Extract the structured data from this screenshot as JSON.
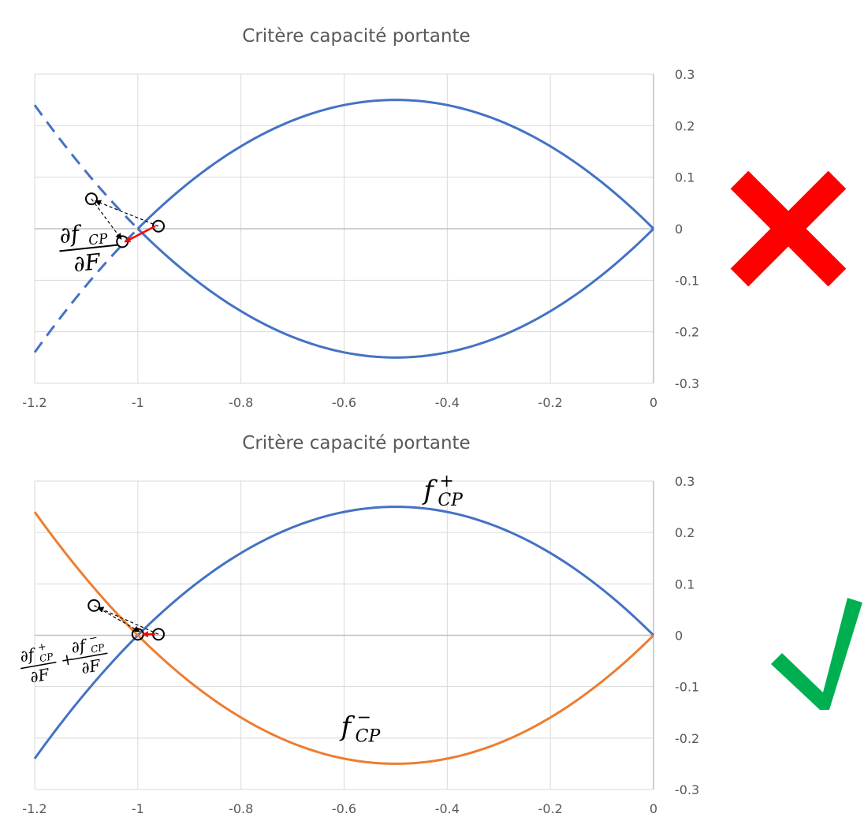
{
  "colors": {
    "blue": "#4472C4",
    "orange": "#ED7D31",
    "grid": "#D9D9D9",
    "axis": "#BFBFBF",
    "tick_text": "#595959",
    "gradient_arrow": "#FF0000",
    "wrong_mark": "#FF0000",
    "right_mark": "#00B050"
  },
  "icons": {
    "wrong": "cross-mark-icon",
    "right": "check-mark-icon"
  },
  "chart_data": [
    {
      "type": "line",
      "title": "Critère  capacité portante",
      "xlim": [
        -1.2,
        0
      ],
      "ylim": [
        -0.3,
        0.3
      ],
      "x_ticks": [
        "-1.2",
        "-1",
        "-0.8",
        "-0.6",
        "-0.4",
        "-0.2",
        "0"
      ],
      "y_ticks": [
        "0.3",
        "0.2",
        "0.1",
        "0",
        "-0.1",
        "-0.2",
        "-0.3"
      ],
      "x_tick_values": [
        -1.2,
        -1,
        -0.8,
        -0.6,
        -0.4,
        -0.2,
        0
      ],
      "y_tick_values": [
        0.3,
        0.2,
        0.1,
        0,
        -0.1,
        -0.2,
        -0.3
      ],
      "grid": true,
      "y_axis_position": "right",
      "series": [
        {
          "color": "#4472C4",
          "style": "solid",
          "domain": [
            -1,
            0
          ],
          "x": [
            -1,
            -0.9,
            -0.8,
            -0.7,
            -0.6,
            -0.5,
            -0.4,
            -0.3,
            -0.2,
            -0.1,
            0
          ],
          "y": [
            0,
            0.09,
            0.16,
            0.21,
            0.24,
            0.25,
            0.24,
            0.21,
            0.16,
            0.09,
            0
          ]
        },
        {
          "color": "#4472C4",
          "style": "solid",
          "domain": [
            -1,
            0
          ],
          "x": [
            -1,
            -0.9,
            -0.8,
            -0.7,
            -0.6,
            -0.5,
            -0.4,
            -0.3,
            -0.2,
            -0.1,
            0
          ],
          "y": [
            0,
            -0.09,
            -0.16,
            -0.21,
            -0.24,
            -0.25,
            -0.24,
            -0.21,
            -0.16,
            -0.09,
            0
          ]
        },
        {
          "color": "#4472C4",
          "style": "dashed",
          "domain": [
            -1.2,
            -1
          ],
          "x": [
            -1.2,
            -1.1,
            -1
          ],
          "y": [
            0.24,
            0.11,
            0
          ]
        },
        {
          "color": "#4472C4",
          "style": "dashed",
          "domain": [
            -1.2,
            -1
          ],
          "x": [
            -1.2,
            -1.1,
            -1
          ],
          "y": [
            -0.24,
            -0.11,
            0
          ]
        }
      ],
      "annotation": {
        "label": "∂f<sub>CP</sub> / ∂F",
        "numerator": "∂f",
        "numerator_sub": "CP",
        "denominator": "∂F",
        "arrow_start": [
          -0.96,
          0.005
        ],
        "arrow_end": [
          -1.03,
          -0.025
        ],
        "projection_from": [
          -1.09,
          0.058
        ],
        "circles": [
          [
            -1.09,
            0.058
          ],
          [
            -0.96,
            0.005
          ],
          [
            -1.03,
            -0.025
          ]
        ]
      },
      "verdict_icon": "cross-mark-icon"
    },
    {
      "type": "line",
      "title": "Critère  capacité portante",
      "xlim": [
        -1.2,
        0
      ],
      "ylim": [
        -0.3,
        0.3
      ],
      "x_ticks": [
        "-1.2",
        "-1",
        "-0.8",
        "-0.6",
        "-0.4",
        "-0.2",
        "0"
      ],
      "y_ticks": [
        "0.3",
        "0.2",
        "0.1",
        "0",
        "-0.1",
        "-0.2",
        "-0.3"
      ],
      "x_tick_values": [
        -1.2,
        -1,
        -0.8,
        -0.6,
        -0.4,
        -0.2,
        0
      ],
      "y_tick_values": [
        0.3,
        0.2,
        0.1,
        0,
        -0.1,
        -0.2,
        -0.3
      ],
      "grid": true,
      "y_axis_position": "right",
      "series": [
        {
          "name": "f+CP",
          "color": "#4472C4",
          "style": "solid",
          "domain": [
            -1.2,
            0
          ],
          "x": [
            -1.2,
            -1.1,
            -1,
            -0.9,
            -0.8,
            -0.7,
            -0.6,
            -0.5,
            -0.4,
            -0.3,
            -0.2,
            -0.1,
            0
          ],
          "y": [
            -0.24,
            -0.11,
            0,
            0.09,
            0.16,
            0.21,
            0.24,
            0.25,
            0.24,
            0.21,
            0.16,
            0.09,
            0
          ]
        },
        {
          "name": "f−CP",
          "color": "#ED7D31",
          "style": "solid",
          "domain": [
            -1.2,
            0
          ],
          "x": [
            -1.2,
            -1.1,
            -1,
            -0.9,
            -0.8,
            -0.7,
            -0.6,
            -0.5,
            -0.4,
            -0.3,
            -0.2,
            -0.1,
            0
          ],
          "y": [
            0.24,
            0.11,
            0,
            -0.09,
            -0.16,
            -0.21,
            -0.24,
            -0.25,
            -0.24,
            -0.21,
            -0.16,
            -0.09,
            0
          ]
        }
      ],
      "series_labels": [
        {
          "base": "f",
          "sup": "+",
          "sub": "CP",
          "at": [
            -0.4,
            0.265
          ]
        },
        {
          "base": "f",
          "sup": "−",
          "sub": "CP",
          "at": [
            -0.56,
            -0.195
          ]
        }
      ],
      "annotation": {
        "numerator_1": "∂f",
        "sup_1": "+",
        "sub_1": "CP",
        "denominator_1": "∂F",
        "plus": "+",
        "numerator_2": "∂f",
        "sup_2": "−",
        "sub_2": "CP",
        "denominator_2": "∂F",
        "arrow_start": [
          -0.96,
          0.002
        ],
        "arrow_end": [
          -0.995,
          0.002
        ],
        "projection_from": [
          -1.085,
          0.058
        ],
        "circles": [
          [
            -1.085,
            0.058
          ],
          [
            -0.96,
            0.002
          ],
          [
            -1.0,
            0.002
          ]
        ]
      },
      "verdict_icon": "check-mark-icon"
    }
  ]
}
